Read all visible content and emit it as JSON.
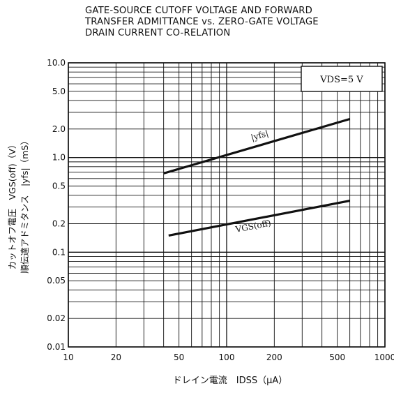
{
  "chart_data": {
    "type": "line",
    "title_lines": [
      "GATE-SOURCE CUTOFF VOLTAGE AND FORWARD",
      "TRANSFER ADMITTANCE vs. ZERO-GATE VOLTAGE",
      "DRAIN CURRENT CO-RELATION"
    ],
    "xlabel": "ドレイン電流　IDSS（μA）",
    "ylabel_lines": [
      "カットオフ電圧　VGS(off)（V）",
      "順伝達アドミタンス　|yfs|（mS）"
    ],
    "x_scale": "log",
    "y_scale": "log",
    "xlim": [
      10,
      1000
    ],
    "ylim": [
      0.01,
      10
    ],
    "x_ticks": [
      {
        "value": 10,
        "label": "10"
      },
      {
        "value": 20,
        "label": "20"
      },
      {
        "value": 50,
        "label": "50"
      },
      {
        "value": 100,
        "label": "100"
      },
      {
        "value": 200,
        "label": "200"
      },
      {
        "value": 500,
        "label": "500"
      },
      {
        "value": 1000,
        "label": "1000"
      }
    ],
    "y_ticks": [
      {
        "value": 10,
        "label": "10.0"
      },
      {
        "value": 5,
        "label": "5.0"
      },
      {
        "value": 2,
        "label": "2.0"
      },
      {
        "value": 1,
        "label": "1.0"
      },
      {
        "value": 0.5,
        "label": "0.5"
      },
      {
        "value": 0.2,
        "label": "0.2"
      },
      {
        "value": 0.1,
        "label": "0.1"
      },
      {
        "value": 0.05,
        "label": "0.05"
      },
      {
        "value": 0.02,
        "label": "0.02"
      },
      {
        "value": 0.01,
        "label": "0.01"
      }
    ],
    "grid": true,
    "condition": "VDS=5 V",
    "series": [
      {
        "name": "",
        "label": "|yfs|",
        "x": [
          40,
          600
        ],
        "y": [
          0.68,
          2.55
        ]
      },
      {
        "name": "",
        "label": "VGS(off)",
        "x": [
          43,
          600
        ],
        "y": [
          0.15,
          0.35
        ]
      }
    ]
  }
}
